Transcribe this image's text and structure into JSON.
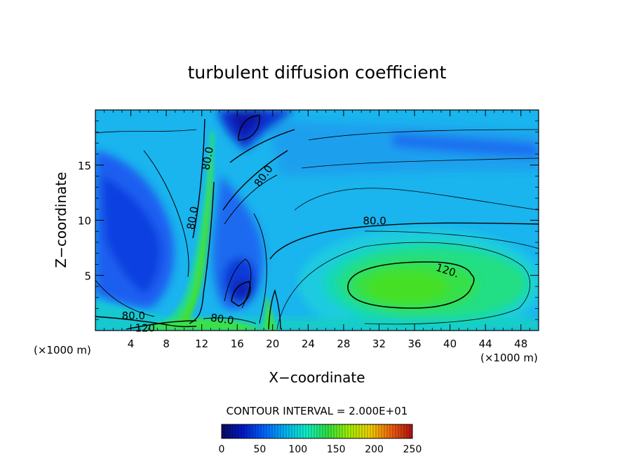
{
  "chart_data": {
    "type": "heatmap",
    "title": "turbulent diffusion coefficient",
    "xlabel": "X−coordinate",
    "ylabel": "Z−coordinate",
    "x_unit_left": "(×1000 m)",
    "x_unit_right": "(×1000 m)",
    "xlim": [
      0,
      50
    ],
    "ylim": [
      0,
      20
    ],
    "x_ticks": [
      4,
      8,
      12,
      16,
      20,
      24,
      28,
      32,
      36,
      40,
      44,
      48
    ],
    "y_ticks": [
      5,
      10,
      15
    ],
    "contour_interval_text": "CONTOUR INTERVAL = 2.000E+01",
    "contour_labels": [
      {
        "text": "80.0",
        "x": 12.7,
        "y": 15.6,
        "rotate": -80
      },
      {
        "text": "80.0",
        "x": 11.0,
        "y": 10.2,
        "rotate": -80
      },
      {
        "text": "80.0",
        "x": 19.0,
        "y": 14.0,
        "rotate": -55
      },
      {
        "text": "80.0",
        "x": 31.5,
        "y": 9.9,
        "rotate": 0
      },
      {
        "text": "120.",
        "x": 39.7,
        "y": 5.4,
        "rotate": 18
      },
      {
        "text": "80.0",
        "x": 4.3,
        "y": 1.3,
        "rotate": 0
      },
      {
        "text": "80.0",
        "x": 14.3,
        "y": 1.0,
        "rotate": 8
      },
      {
        "text": "120",
        "x": 5.6,
        "y": 0.2,
        "rotate": 0
      }
    ],
    "colorbar": {
      "min": 0,
      "max": 250,
      "ticks": [
        "0",
        "50",
        "100",
        "150",
        "200",
        "250"
      ],
      "colors": [
        "#0a0a60",
        "#0018c8",
        "#0064ff",
        "#00b4f0",
        "#10f0c8",
        "#30e040",
        "#a0f000",
        "#f0d000",
        "#f06010",
        "#b01010"
      ]
    },
    "palette": {
      "deep_blue": "#0a2ad0",
      "blue": "#1a5ff0",
      "light_blue": "#1aa8f0",
      "cyan": "#18cce8",
      "teal": "#12d8c0",
      "green": "#24e070",
      "bright_green": "#40e020"
    }
  }
}
